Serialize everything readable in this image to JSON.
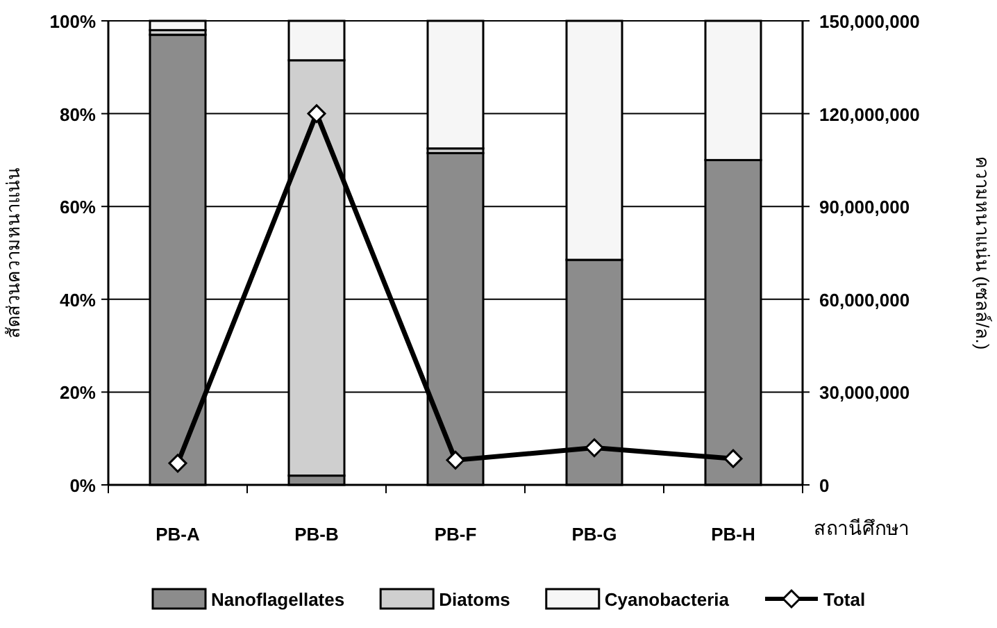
{
  "chart_data": {
    "type": "bar",
    "stacked": true,
    "categories": [
      "PB-A",
      "PB-B",
      "PB-F",
      "PB-G",
      "PB-H"
    ],
    "xlabel": "สถานีศึกษา",
    "ylabel": "สัดส่วนความหนาแน่น",
    "y2label": "ความหนาแน่น (เซลล์/ล.)",
    "series": [
      {
        "name": "Nanoflagellates",
        "color": "#8c8c8c",
        "values": [
          97,
          2,
          71.5,
          48.5,
          70
        ]
      },
      {
        "name": "Diatoms",
        "color": "#cfcfcf",
        "values": [
          1,
          89.5,
          1,
          0,
          0
        ]
      },
      {
        "name": "Cyanobacteria",
        "color": "#f6f6f6",
        "values": [
          2,
          8.5,
          27.5,
          51.5,
          30
        ]
      },
      {
        "name": "Total",
        "type": "line",
        "axis": "y2",
        "color": "#000000",
        "marker": "diamond",
        "values": [
          7000000,
          120000000,
          8000000,
          12000000,
          8500000
        ]
      }
    ],
    "ylim": [
      0,
      100
    ],
    "yticks": [
      {
        "value": 0,
        "label": "0%"
      },
      {
        "value": 20,
        "label": "20%"
      },
      {
        "value": 40,
        "label": "40%"
      },
      {
        "value": 60,
        "label": "60%"
      },
      {
        "value": 80,
        "label": "80%"
      },
      {
        "value": 100,
        "label": "100%"
      }
    ],
    "y2lim": [
      0,
      150000000
    ],
    "y2ticks": [
      {
        "value": 0,
        "label": "0"
      },
      {
        "value": 30000000,
        "label": "30,000,000"
      },
      {
        "value": 60000000,
        "label": "60,000,000"
      },
      {
        "value": 90000000,
        "label": "90,000,000"
      },
      {
        "value": 120000000,
        "label": "120,000,000"
      },
      {
        "value": 150000000,
        "label": "150,000,000"
      }
    ],
    "grid": "y",
    "legend": "bottom"
  }
}
